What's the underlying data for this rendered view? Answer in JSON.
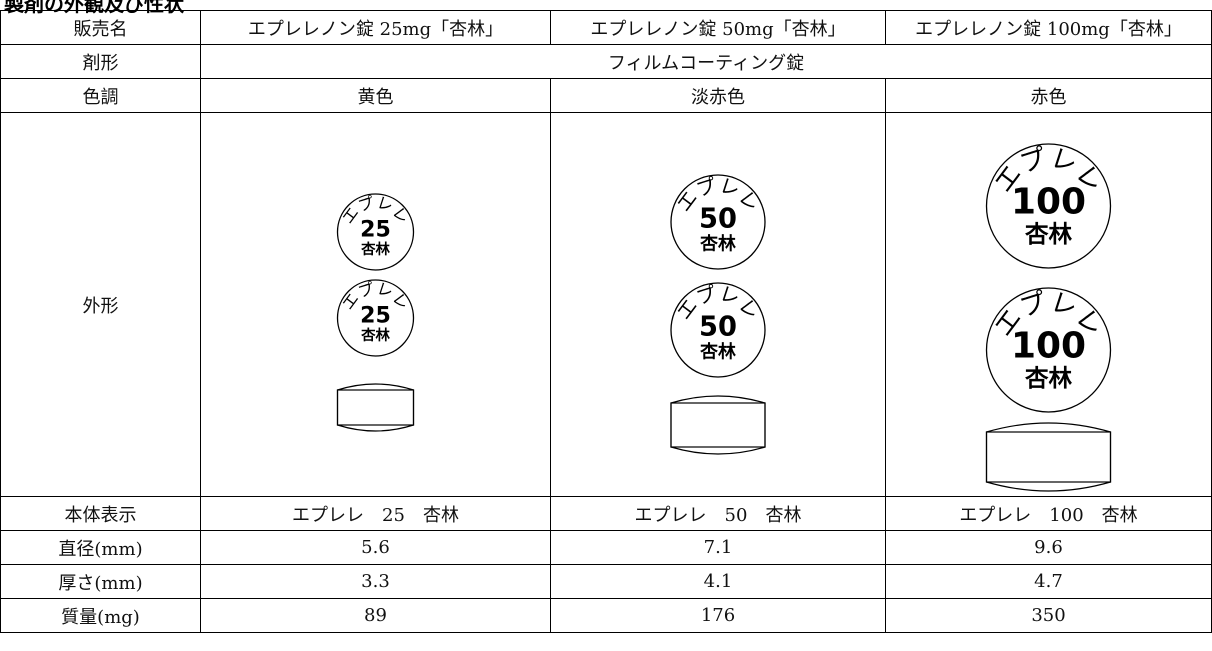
{
  "header": {
    "title": "製剤の外観及び性状"
  },
  "table": {
    "rows": [
      [
        "販売名",
        "エプレレノン錠 25mg「杏林」",
        "エプレレノン錠 50mg「杏林」",
        "エプレレノン錠 100mg「杏林」"
      ],
      [
        "剤形",
        "フィルムコーティング錠"
      ],
      [
        "色調",
        "黄色",
        "淡赤色",
        "赤色"
      ],
      [
        "外形"
      ],
      [
        "本体表示",
        "エプレレ　25　杏林",
        "エプレレ　50　杏林",
        "エプレレ　100　杏林"
      ],
      [
        "直径(mm)",
        "5.6",
        "7.1",
        "9.6"
      ],
      [
        "厚さ(mm)",
        "3.3",
        "4.1",
        "4.7"
      ],
      [
        "質量(mg)",
        "89",
        "176",
        "350"
      ]
    ]
  },
  "tablet_marks": [
    {
      "arc": "エプレレ",
      "number": "25",
      "maker": "杏林"
    },
    {
      "arc": "エプレレ",
      "number": "50",
      "maker": "杏林"
    },
    {
      "arc": "エプレレ",
      "number": "100",
      "maker": "杏林"
    }
  ]
}
